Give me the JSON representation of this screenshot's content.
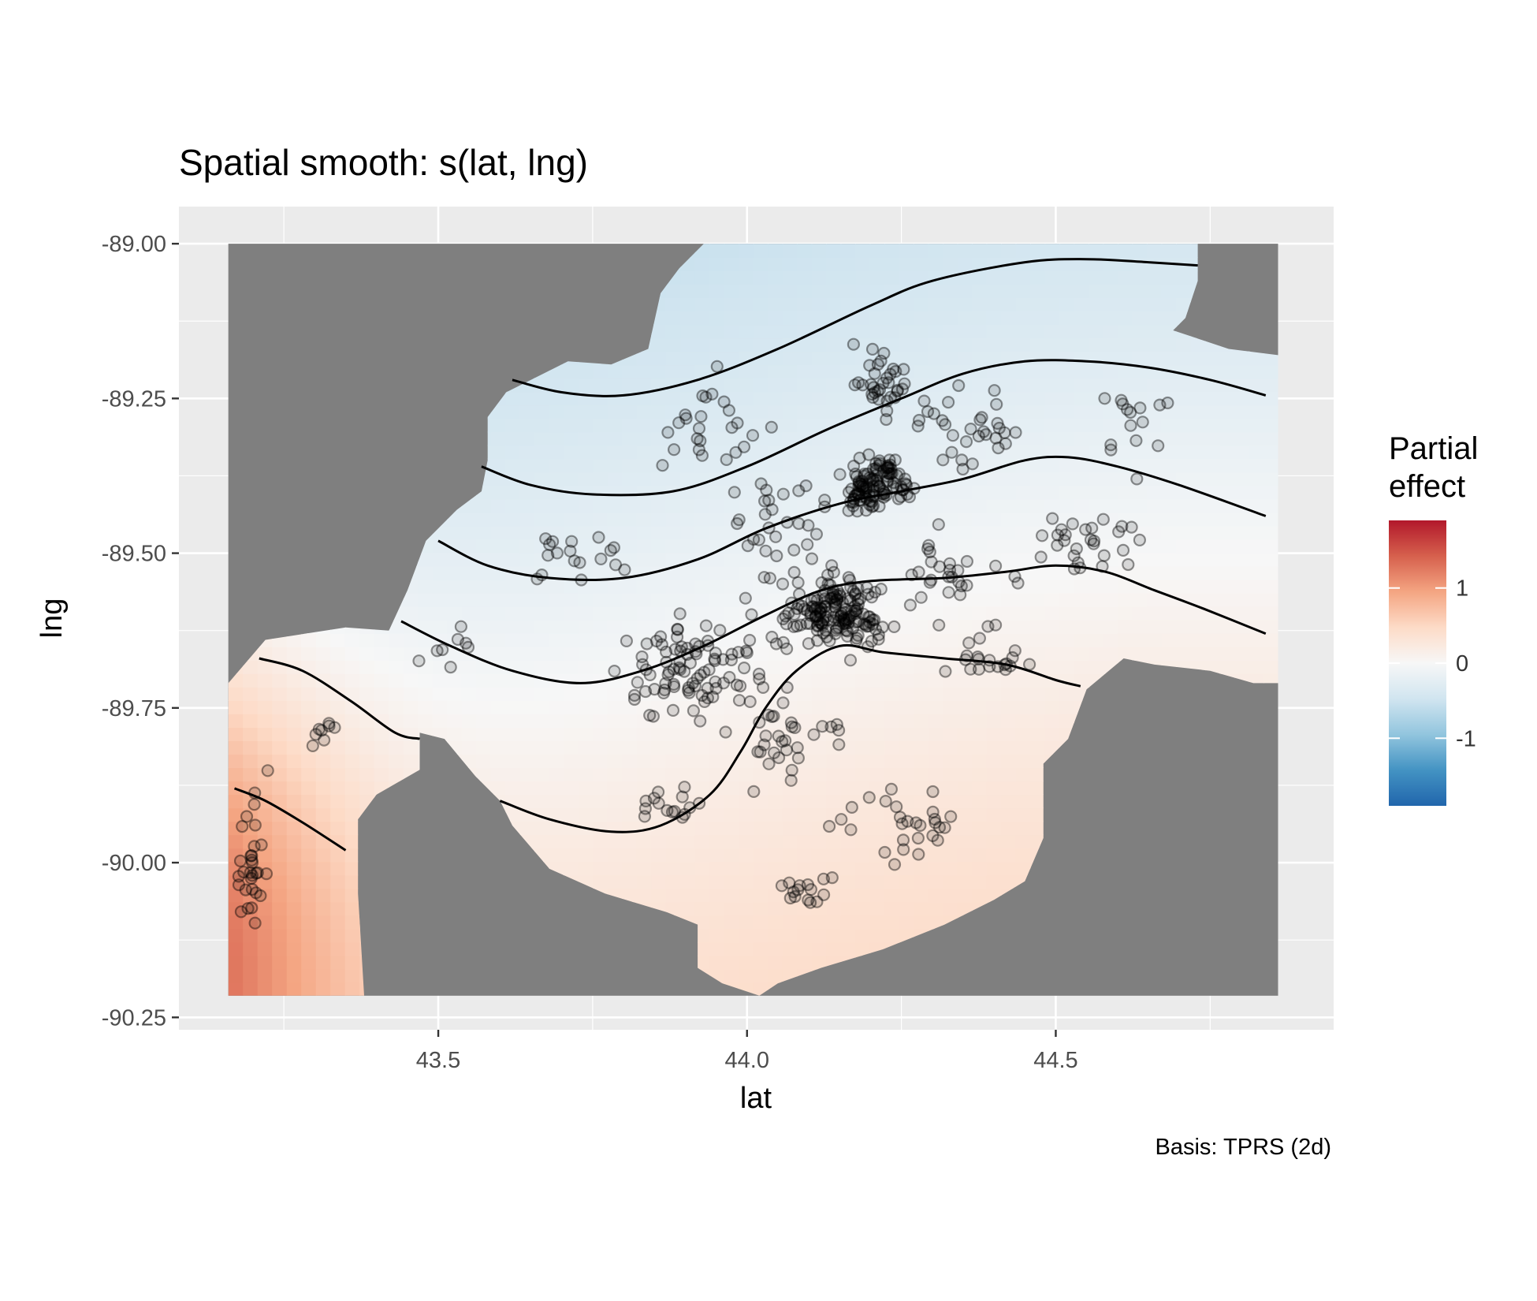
{
  "chart_data": {
    "type": "heatmap",
    "title": "Spatial smooth: s(lat, lng)",
    "xlabel": "lat",
    "ylabel": "lng",
    "caption": "Basis: TPRS (2d)",
    "xlim": [
      43.08,
      44.95
    ],
    "ylim": [
      -90.27,
      -88.94
    ],
    "x_ticks": [
      {
        "v": 43.5,
        "label": "43.5"
      },
      {
        "v": 44.0,
        "label": "44.0"
      },
      {
        "v": 44.5,
        "label": "44.5"
      }
    ],
    "y_ticks": [
      {
        "v": -89.0,
        "label": "-89.00"
      },
      {
        "v": -89.25,
        "label": "-89.25"
      },
      {
        "v": -89.5,
        "label": "-89.50"
      },
      {
        "v": -89.75,
        "label": "-89.75"
      },
      {
        "v": -90.0,
        "label": "-90.00"
      },
      {
        "v": -90.25,
        "label": "-90.25"
      }
    ],
    "x_minor": [
      43.25,
      43.75,
      44.25,
      44.75
    ],
    "y_minor": [
      -89.125,
      -89.375,
      -89.625,
      -89.875,
      -90.125
    ],
    "grid": true,
    "background": "#ebebeb",
    "excluded_fill": "#7f7f7f",
    "legend": {
      "title": [
        "Partial",
        "effect"
      ],
      "placement": "right",
      "range": [
        -1.9,
        1.9
      ],
      "ticks": [
        {
          "v": 1,
          "label": "1"
        },
        {
          "v": 0,
          "label": "0"
        },
        {
          "v": -1,
          "label": "-1"
        }
      ],
      "colors": [
        "#2166ac",
        "#4393c3",
        "#92c5de",
        "#d1e5f0",
        "#f7f7f7",
        "#fddbc7",
        "#f4a582",
        "#d6604d",
        "#b2182b"
      ]
    },
    "surface_bounds": {
      "lat": [
        43.16,
        44.86
      ],
      "lng": [
        -90.215,
        -89.0
      ]
    },
    "region_polygon": [
      [
        43.16,
        -89.71
      ],
      [
        43.22,
        -89.64
      ],
      [
        43.35,
        -89.62
      ],
      [
        43.42,
        -89.625
      ],
      [
        43.45,
        -89.56
      ],
      [
        43.48,
        -89.48
      ],
      [
        43.53,
        -89.43
      ],
      [
        43.57,
        -89.4
      ],
      [
        43.58,
        -89.35
      ],
      [
        43.58,
        -89.28
      ],
      [
        43.61,
        -89.24
      ],
      [
        43.71,
        -89.19
      ],
      [
        43.78,
        -89.195
      ],
      [
        43.84,
        -89.17
      ],
      [
        43.86,
        -89.08
      ],
      [
        43.89,
        -89.04
      ],
      [
        43.93,
        -89.0
      ],
      [
        44.73,
        -89.0
      ],
      [
        44.73,
        -89.06
      ],
      [
        44.71,
        -89.12
      ],
      [
        44.69,
        -89.14
      ],
      [
        44.72,
        -89.15
      ],
      [
        44.78,
        -89.17
      ],
      [
        44.86,
        -89.18
      ],
      [
        44.86,
        -89.71
      ],
      [
        44.82,
        -89.71
      ],
      [
        44.75,
        -89.69
      ],
      [
        44.66,
        -89.68
      ],
      [
        44.61,
        -89.67
      ],
      [
        44.55,
        -89.72
      ],
      [
        44.52,
        -89.8
      ],
      [
        44.48,
        -89.84
      ],
      [
        44.48,
        -89.96
      ],
      [
        44.45,
        -90.03
      ],
      [
        44.4,
        -90.06
      ],
      [
        44.32,
        -90.1
      ],
      [
        44.22,
        -90.14
      ],
      [
        44.12,
        -90.17
      ],
      [
        44.05,
        -90.195
      ],
      [
        44.02,
        -90.215
      ],
      [
        43.96,
        -90.195
      ],
      [
        43.92,
        -90.17
      ],
      [
        43.92,
        -90.1
      ],
      [
        43.87,
        -90.08
      ],
      [
        43.77,
        -90.05
      ],
      [
        43.68,
        -90.01
      ],
      [
        43.62,
        -89.94
      ],
      [
        43.6,
        -89.9
      ],
      [
        43.56,
        -89.86
      ],
      [
        43.51,
        -89.8
      ],
      [
        43.47,
        -89.79
      ],
      [
        43.47,
        -89.85
      ],
      [
        43.4,
        -89.89
      ],
      [
        43.37,
        -89.93
      ],
      [
        43.37,
        -90.05
      ],
      [
        43.38,
        -90.215
      ],
      [
        43.16,
        -90.215
      ]
    ],
    "field": {
      "a": 0.9,
      "b": -1.2,
      "c": 0.13,
      "d": 44.0,
      "e": 2.0,
      "f": -89.6,
      "g": 2.64,
      "h": 0.15,
      "k": -89.25
    },
    "contours": [
      [
        [
          43.62,
          -89.22
        ],
        [
          43.7,
          -89.24
        ],
        [
          43.8,
          -89.245
        ],
        [
          43.92,
          -89.22
        ],
        [
          44.05,
          -89.17
        ],
        [
          44.2,
          -89.1
        ],
        [
          44.3,
          -89.06
        ],
        [
          44.45,
          -89.03
        ],
        [
          44.55,
          -89.025
        ],
        [
          44.65,
          -89.03
        ],
        [
          44.73,
          -89.035
        ]
      ],
      [
        [
          43.57,
          -89.36
        ],
        [
          43.65,
          -89.39
        ],
        [
          43.75,
          -89.405
        ],
        [
          43.88,
          -89.4
        ],
        [
          44.0,
          -89.36
        ],
        [
          44.13,
          -89.3
        ],
        [
          44.25,
          -89.25
        ],
        [
          44.35,
          -89.21
        ],
        [
          44.45,
          -89.19
        ],
        [
          44.55,
          -89.19
        ],
        [
          44.65,
          -89.2
        ],
        [
          44.75,
          -89.22
        ],
        [
          44.84,
          -89.245
        ]
      ],
      [
        [
          43.5,
          -89.48
        ],
        [
          43.58,
          -89.52
        ],
        [
          43.68,
          -89.54
        ],
        [
          43.8,
          -89.54
        ],
        [
          43.92,
          -89.51
        ],
        [
          44.03,
          -89.46
        ],
        [
          44.15,
          -89.42
        ],
        [
          44.25,
          -89.4
        ],
        [
          44.35,
          -89.38
        ],
        [
          44.45,
          -89.35
        ],
        [
          44.52,
          -89.345
        ],
        [
          44.6,
          -89.36
        ],
        [
          44.7,
          -89.39
        ],
        [
          44.84,
          -89.44
        ]
      ],
      [
        [
          43.44,
          -89.61
        ],
        [
          43.52,
          -89.65
        ],
        [
          43.62,
          -89.69
        ],
        [
          43.73,
          -89.71
        ],
        [
          43.83,
          -89.69
        ],
        [
          43.93,
          -89.65
        ],
        [
          44.03,
          -89.6
        ],
        [
          44.12,
          -89.56
        ],
        [
          44.2,
          -89.545
        ],
        [
          44.32,
          -89.54
        ],
        [
          44.42,
          -89.53
        ],
        [
          44.5,
          -89.52
        ],
        [
          44.58,
          -89.53
        ],
        [
          44.66,
          -89.56
        ],
        [
          44.74,
          -89.59
        ],
        [
          44.84,
          -89.63
        ]
      ],
      [
        [
          43.6,
          -89.9
        ],
        [
          43.68,
          -89.93
        ],
        [
          43.78,
          -89.95
        ],
        [
          43.86,
          -89.94
        ],
        [
          43.94,
          -89.89
        ],
        [
          43.99,
          -89.82
        ],
        [
          44.03,
          -89.75
        ],
        [
          44.08,
          -89.69
        ],
        [
          44.15,
          -89.65
        ],
        [
          44.22,
          -89.66
        ],
        [
          44.32,
          -89.67
        ],
        [
          44.42,
          -89.68
        ],
        [
          44.5,
          -89.705
        ],
        [
          44.54,
          -89.715
        ]
      ],
      [
        [
          43.21,
          -89.67
        ],
        [
          43.28,
          -89.69
        ],
        [
          43.36,
          -89.74
        ],
        [
          43.43,
          -89.79
        ],
        [
          43.47,
          -89.8
        ]
      ],
      [
        [
          43.17,
          -89.88
        ],
        [
          43.22,
          -89.9
        ],
        [
          43.28,
          -89.935
        ],
        [
          43.35,
          -89.98
        ]
      ]
    ],
    "scatter_clusters": [
      {
        "lat": 44.15,
        "lng": -89.6,
        "sx": 0.06,
        "sy": 0.04,
        "n": 160
      },
      {
        "lat": 44.21,
        "lng": -89.39,
        "sx": 0.04,
        "sy": 0.03,
        "n": 110
      },
      {
        "lat": 43.94,
        "lng": -89.69,
        "sx": 0.1,
        "sy": 0.06,
        "n": 95
      },
      {
        "lat": 44.22,
        "lng": -89.22,
        "sx": 0.04,
        "sy": 0.04,
        "n": 35
      },
      {
        "lat": 43.94,
        "lng": -89.28,
        "sx": 0.06,
        "sy": 0.05,
        "n": 25
      },
      {
        "lat": 44.35,
        "lng": -89.3,
        "sx": 0.05,
        "sy": 0.05,
        "n": 30
      },
      {
        "lat": 43.72,
        "lng": -89.51,
        "sx": 0.06,
        "sy": 0.03,
        "n": 18
      },
      {
        "lat": 44.55,
        "lng": -89.49,
        "sx": 0.07,
        "sy": 0.04,
        "n": 30
      },
      {
        "lat": 44.33,
        "lng": -89.54,
        "sx": 0.05,
        "sy": 0.06,
        "n": 25
      },
      {
        "lat": 43.2,
        "lng": -90.0,
        "sx": 0.02,
        "sy": 0.09,
        "n": 30
      },
      {
        "lat": 43.3,
        "lng": -89.79,
        "sx": 0.02,
        "sy": 0.02,
        "n": 8
      },
      {
        "lat": 44.25,
        "lng": -89.94,
        "sx": 0.1,
        "sy": 0.05,
        "n": 28
      },
      {
        "lat": 44.1,
        "lng": -90.05,
        "sx": 0.05,
        "sy": 0.02,
        "n": 15
      },
      {
        "lat": 44.07,
        "lng": -89.8,
        "sx": 0.06,
        "sy": 0.05,
        "n": 30
      },
      {
        "lat": 43.87,
        "lng": -89.91,
        "sx": 0.04,
        "sy": 0.02,
        "n": 15
      },
      {
        "lat": 44.38,
        "lng": -89.66,
        "sx": 0.05,
        "sy": 0.03,
        "n": 20
      },
      {
        "lat": 44.05,
        "lng": -89.45,
        "sx": 0.06,
        "sy": 0.05,
        "n": 30
      },
      {
        "lat": 44.62,
        "lng": -89.27,
        "sx": 0.04,
        "sy": 0.08,
        "n": 15
      },
      {
        "lat": 43.52,
        "lng": -89.65,
        "sx": 0.03,
        "sy": 0.03,
        "n": 8
      }
    ]
  }
}
